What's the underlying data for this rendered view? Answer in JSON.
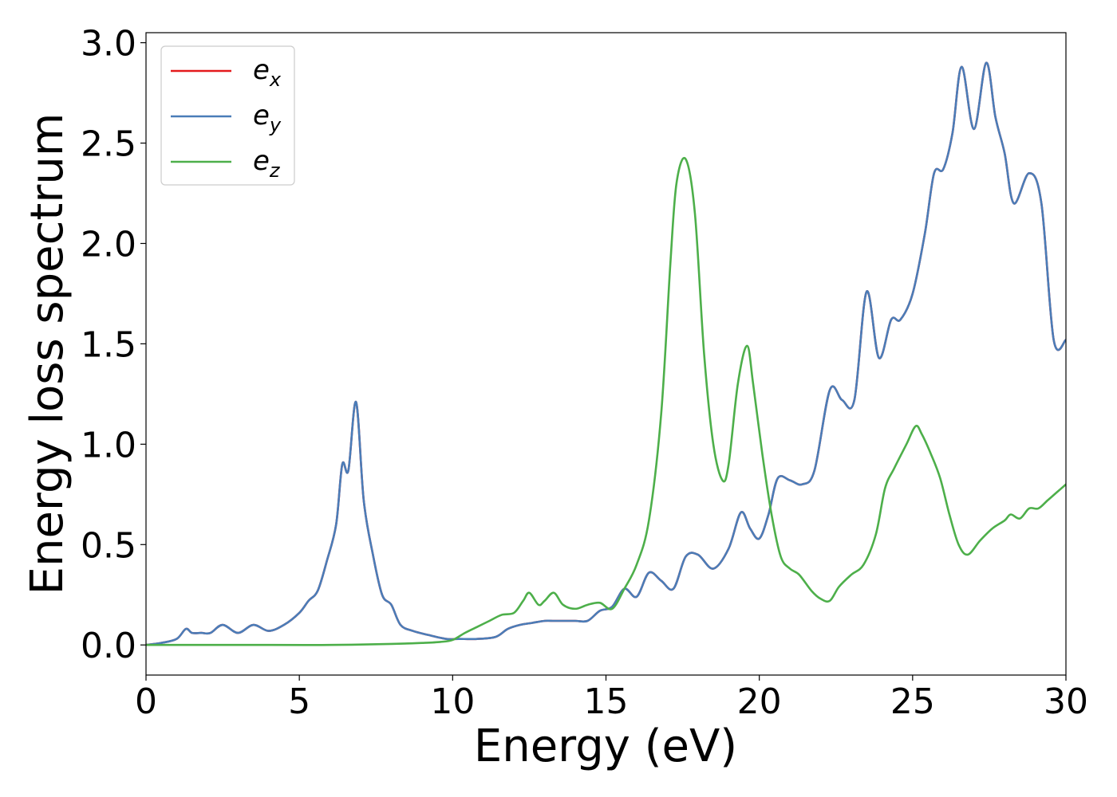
{
  "chart_data": {
    "type": "line",
    "title": "",
    "xlabel": "Energy (eV)",
    "ylabel": "Energy loss spectrum",
    "xlim": [
      0,
      30
    ],
    "ylim": [
      -0.15,
      3.05
    ],
    "xticks": [
      0,
      5,
      10,
      15,
      20,
      25,
      30
    ],
    "xtick_labels": [
      "0",
      "5",
      "10",
      "15",
      "20",
      "25",
      "30"
    ],
    "yticks": [
      0.0,
      0.5,
      1.0,
      1.5,
      2.0,
      2.5,
      3.0
    ],
    "ytick_labels": [
      "0.0",
      "0.5",
      "1.0",
      "1.5",
      "2.0",
      "2.5",
      "3.0"
    ],
    "grid": false,
    "legend_position": "top-left",
    "series": [
      {
        "name": "e_x",
        "legend_base": "e",
        "legend_sub": "x",
        "color": "#e41a1c",
        "x": [
          0,
          0.5,
          1.0,
          1.3,
          1.5,
          1.8,
          2.1,
          2.5,
          3.0,
          3.5,
          4.0,
          4.5,
          5.0,
          5.3,
          5.6,
          5.9,
          6.2,
          6.4,
          6.6,
          6.85,
          7.1,
          7.4,
          7.7,
          8.0,
          8.3,
          8.7,
          9.2,
          9.8,
          10.2,
          10.8,
          11.4,
          11.8,
          12.2,
          12.6,
          13.0,
          13.3,
          13.6,
          14.0,
          14.4,
          14.8,
          15.2,
          15.6,
          16.0,
          16.4,
          16.8,
          17.2,
          17.6,
          18.0,
          18.5,
          19.0,
          19.4,
          19.7,
          20.0,
          20.3,
          20.6,
          21.0,
          21.4,
          21.8,
          22.3,
          22.7,
          23.1,
          23.5,
          23.9,
          24.3,
          24.6,
          25.0,
          25.4,
          25.7,
          26.0,
          26.3,
          26.6,
          27.0,
          27.4,
          27.7,
          28.0,
          28.3,
          28.8,
          29.2,
          29.6,
          30.0
        ],
        "y": [
          0.0,
          0.01,
          0.03,
          0.08,
          0.06,
          0.06,
          0.06,
          0.1,
          0.06,
          0.1,
          0.07,
          0.1,
          0.16,
          0.22,
          0.27,
          0.42,
          0.6,
          0.9,
          0.87,
          1.21,
          0.72,
          0.45,
          0.25,
          0.2,
          0.1,
          0.07,
          0.05,
          0.03,
          0.03,
          0.03,
          0.04,
          0.08,
          0.1,
          0.11,
          0.12,
          0.12,
          0.12,
          0.12,
          0.12,
          0.17,
          0.19,
          0.28,
          0.24,
          0.36,
          0.32,
          0.28,
          0.44,
          0.45,
          0.38,
          0.48,
          0.66,
          0.58,
          0.53,
          0.65,
          0.83,
          0.82,
          0.8,
          0.87,
          1.27,
          1.22,
          1.22,
          1.76,
          1.43,
          1.62,
          1.62,
          1.75,
          2.05,
          2.35,
          2.37,
          2.55,
          2.88,
          2.57,
          2.9,
          2.63,
          2.45,
          2.2,
          2.35,
          2.2,
          1.52,
          1.52
        ]
      },
      {
        "name": "e_y",
        "legend_base": "e",
        "legend_sub": "y",
        "color": "#4a7db8",
        "x": [
          0,
          0.5,
          1.0,
          1.3,
          1.5,
          1.8,
          2.1,
          2.5,
          3.0,
          3.5,
          4.0,
          4.5,
          5.0,
          5.3,
          5.6,
          5.9,
          6.2,
          6.4,
          6.6,
          6.85,
          7.1,
          7.4,
          7.7,
          8.0,
          8.3,
          8.7,
          9.2,
          9.8,
          10.2,
          10.8,
          11.4,
          11.8,
          12.2,
          12.6,
          13.0,
          13.3,
          13.6,
          14.0,
          14.4,
          14.8,
          15.2,
          15.6,
          16.0,
          16.4,
          16.8,
          17.2,
          17.6,
          18.0,
          18.5,
          19.0,
          19.4,
          19.7,
          20.0,
          20.3,
          20.6,
          21.0,
          21.4,
          21.8,
          22.3,
          22.7,
          23.1,
          23.5,
          23.9,
          24.3,
          24.6,
          25.0,
          25.4,
          25.7,
          26.0,
          26.3,
          26.6,
          27.0,
          27.4,
          27.7,
          28.0,
          28.3,
          28.8,
          29.2,
          29.6,
          30.0
        ],
        "y": [
          0.0,
          0.01,
          0.03,
          0.08,
          0.06,
          0.06,
          0.06,
          0.1,
          0.06,
          0.1,
          0.07,
          0.1,
          0.16,
          0.22,
          0.27,
          0.42,
          0.6,
          0.9,
          0.87,
          1.21,
          0.72,
          0.45,
          0.25,
          0.2,
          0.1,
          0.07,
          0.05,
          0.03,
          0.03,
          0.03,
          0.04,
          0.08,
          0.1,
          0.11,
          0.12,
          0.12,
          0.12,
          0.12,
          0.12,
          0.17,
          0.19,
          0.28,
          0.24,
          0.36,
          0.32,
          0.28,
          0.44,
          0.45,
          0.38,
          0.48,
          0.66,
          0.58,
          0.53,
          0.65,
          0.83,
          0.82,
          0.8,
          0.87,
          1.27,
          1.22,
          1.22,
          1.76,
          1.43,
          1.62,
          1.62,
          1.75,
          2.05,
          2.35,
          2.37,
          2.55,
          2.88,
          2.57,
          2.9,
          2.63,
          2.45,
          2.2,
          2.35,
          2.2,
          1.52,
          1.52
        ]
      },
      {
        "name": "e_z",
        "legend_base": "e",
        "legend_sub": "z",
        "color": "#4daf4a",
        "x": [
          0,
          2.0,
          4.0,
          6.0,
          8.0,
          9.0,
          9.6,
          10.0,
          10.4,
          10.8,
          11.2,
          11.6,
          12.0,
          12.3,
          12.5,
          12.8,
          13.0,
          13.3,
          13.6,
          14.0,
          14.4,
          14.8,
          15.2,
          15.6,
          16.0,
          16.4,
          16.8,
          17.1,
          17.3,
          17.6,
          17.9,
          18.2,
          18.5,
          18.8,
          19.0,
          19.3,
          19.6,
          19.8,
          20.1,
          20.4,
          20.7,
          21.0,
          21.3,
          21.7,
          22.0,
          22.3,
          22.6,
          23.0,
          23.4,
          23.8,
          24.1,
          24.4,
          24.8,
          25.1,
          25.3,
          25.6,
          25.9,
          26.2,
          26.5,
          26.8,
          27.2,
          27.6,
          28.0,
          28.2,
          28.5,
          28.8,
          29.1,
          29.4,
          29.7,
          30.0
        ],
        "y": [
          0.0,
          0.0,
          0.0,
          0.0,
          0.005,
          0.01,
          0.015,
          0.025,
          0.06,
          0.09,
          0.12,
          0.15,
          0.16,
          0.22,
          0.26,
          0.2,
          0.22,
          0.26,
          0.2,
          0.18,
          0.2,
          0.21,
          0.18,
          0.28,
          0.4,
          0.62,
          1.15,
          1.9,
          2.3,
          2.42,
          2.15,
          1.45,
          1.0,
          0.82,
          0.9,
          1.3,
          1.49,
          1.3,
          0.95,
          0.65,
          0.44,
          0.38,
          0.35,
          0.27,
          0.23,
          0.22,
          0.29,
          0.35,
          0.4,
          0.55,
          0.78,
          0.88,
          1.0,
          1.09,
          1.05,
          0.95,
          0.83,
          0.65,
          0.5,
          0.45,
          0.52,
          0.58,
          0.62,
          0.65,
          0.63,
          0.68,
          0.68,
          0.72,
          0.76,
          0.8
        ]
      }
    ]
  }
}
